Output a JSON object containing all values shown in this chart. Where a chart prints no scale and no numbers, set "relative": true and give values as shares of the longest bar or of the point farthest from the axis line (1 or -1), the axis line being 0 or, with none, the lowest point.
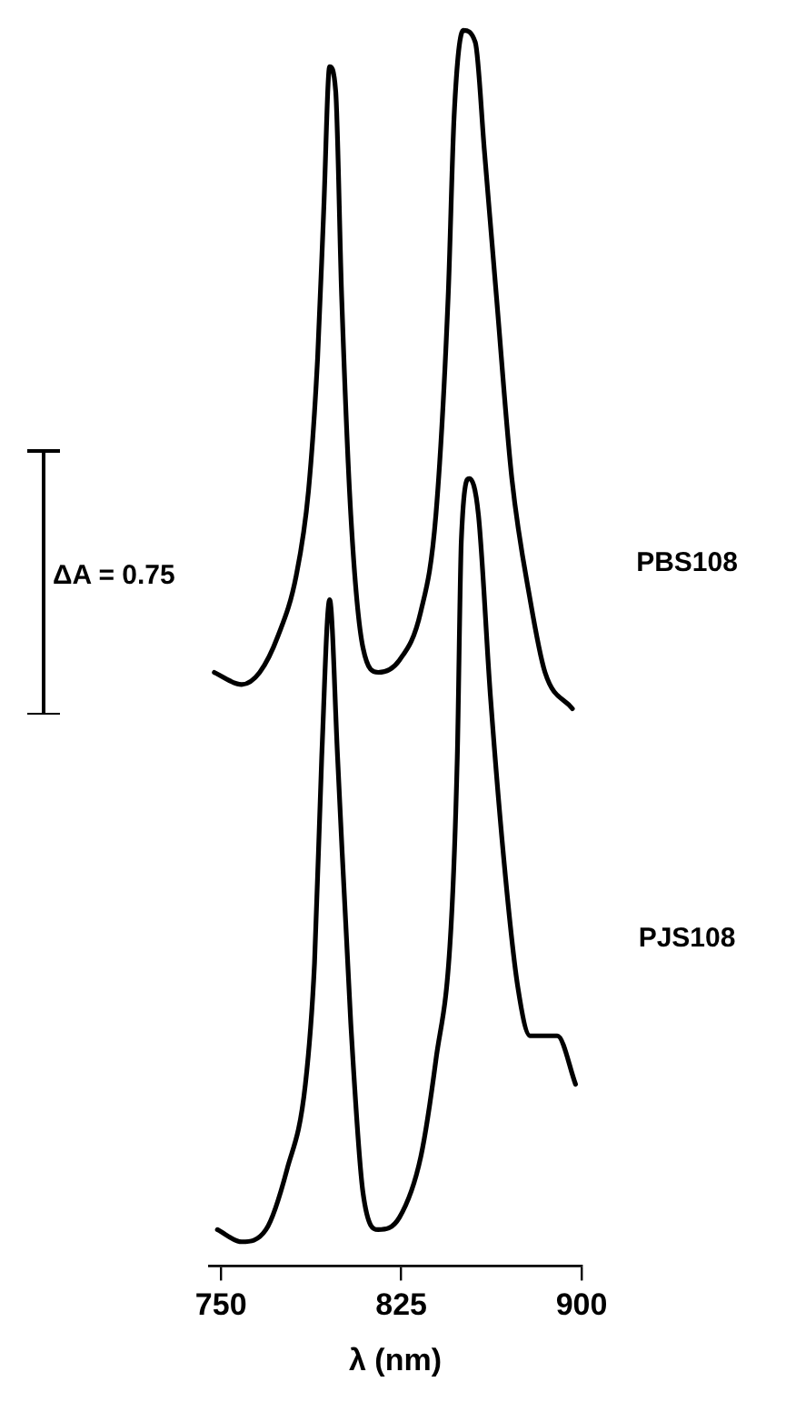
{
  "chart_data": {
    "type": "line",
    "xlabel": "λ (nm)",
    "ylabel": "ΔA = 0.75",
    "relative": true,
    "xlim": [
      745,
      900
    ],
    "xticks": [
      750,
      825,
      900
    ],
    "tick_labels": "x",
    "grid": false,
    "legend": false,
    "marker": "none",
    "line_style": "solid",
    "series": [
      {
        "name": "PBS108",
        "color": "#000000",
        "x": [
          747.2,
          758.6,
          766.1,
          773.7,
          781.3,
          786.4,
          790.2,
          792.7,
          795.2,
          797.7,
          800.2,
          804.0,
          809.1,
          815.4,
          824.2,
          833.1,
          839.4,
          844.5,
          847.0,
          850.8,
          855.8,
          859.6,
          864.6,
          871.0,
          878.6,
          884.8,
          896.2
        ],
        "values": [
          0.47,
          0.46,
          0.47,
          0.5,
          0.55,
          0.62,
          0.73,
          0.85,
          0.97,
          0.95,
          0.78,
          0.6,
          0.49,
          0.47,
          0.48,
          0.52,
          0.6,
          0.78,
          0.93,
          1,
          0.99,
          0.9,
          0.78,
          0.63,
          0.53,
          0.47,
          0.44
        ]
      },
      {
        "name": "PJS108",
        "color": "#000000",
        "x": [
          748.5,
          758.6,
          768.7,
          777.5,
          785.1,
          788.9,
          791.9,
          795.2,
          798.5,
          804.0,
          809.1,
          815.4,
          824.2,
          833.1,
          839.4,
          845.7,
          848.3,
          850.0,
          853.3,
          857.1,
          862.1,
          868.4,
          873.5,
          878.6,
          883.6,
          889.9,
          897.5
        ],
        "values": [
          0.01,
          0,
          0.01,
          0.06,
          0.13,
          0.23,
          0.4,
          0.53,
          0.4,
          0.18,
          0.04,
          0.01,
          0.02,
          0.07,
          0.15,
          0.26,
          0.4,
          0.58,
          0.63,
          0.6,
          0.45,
          0.3,
          0.21,
          0.17,
          0.17,
          0.17,
          0.13
        ]
      }
    ]
  }
}
